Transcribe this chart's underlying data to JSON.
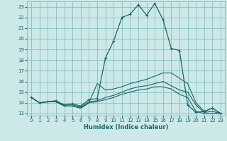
{
  "title": "",
  "xlabel": "Humidex (Indice chaleur)",
  "bg_color": "#cce8e8",
  "grid_color": "#7ab8b8",
  "line_color": "#1a6666",
  "xlim": [
    -0.5,
    23.5
  ],
  "ylim": [
    12.8,
    23.5
  ],
  "yticks": [
    13,
    14,
    15,
    16,
    17,
    18,
    19,
    20,
    21,
    22,
    23
  ],
  "xticks": [
    0,
    1,
    2,
    3,
    4,
    5,
    6,
    7,
    8,
    9,
    10,
    11,
    12,
    13,
    14,
    15,
    16,
    17,
    18,
    19,
    20,
    21,
    22,
    23
  ],
  "humidex": [
    14.5,
    14.0,
    14.1,
    14.2,
    13.8,
    13.9,
    13.7,
    14.3,
    14.4,
    18.2,
    19.8,
    22.0,
    22.3,
    23.2,
    22.2,
    23.3,
    21.8,
    19.1,
    18.9,
    13.8,
    13.1,
    13.2,
    13.5,
    13.0
  ],
  "max": [
    14.5,
    14.0,
    14.1,
    14.1,
    13.7,
    13.7,
    13.5,
    14.0,
    15.8,
    15.2,
    15.3,
    15.5,
    15.8,
    16.0,
    16.2,
    16.5,
    16.8,
    16.8,
    16.3,
    15.8,
    14.0,
    13.2,
    13.5,
    13.0
  ],
  "mean": [
    14.5,
    14.0,
    14.1,
    14.1,
    13.8,
    13.8,
    13.6,
    14.1,
    14.2,
    14.5,
    14.7,
    15.0,
    15.3,
    15.5,
    15.6,
    15.8,
    16.0,
    15.6,
    15.2,
    15.0,
    13.8,
    13.1,
    13.2,
    13.0
  ],
  "min": [
    14.5,
    14.0,
    14.1,
    14.1,
    13.7,
    13.7,
    13.5,
    14.0,
    14.1,
    14.3,
    14.5,
    14.8,
    15.0,
    15.2,
    15.3,
    15.5,
    15.5,
    15.3,
    14.8,
    14.5,
    13.2,
    13.0,
    13.0,
    13.0
  ]
}
